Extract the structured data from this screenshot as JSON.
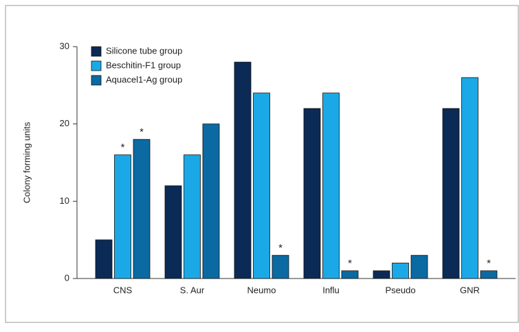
{
  "chart_data": {
    "type": "bar",
    "y_label": "Colony forming units",
    "categories": [
      "CNS",
      "S. Aur",
      "Neumo",
      "Influ",
      "Pseudo",
      "GNR"
    ],
    "series": [
      {
        "name": "Silicone tube group",
        "color": "#0b2a55",
        "values": [
          5,
          12,
          28,
          22,
          1,
          22
        ]
      },
      {
        "name": "Beschitin-F1 group",
        "color": "#1aa9e6",
        "values": [
          16,
          16,
          24,
          24,
          2,
          26
        ]
      },
      {
        "name": "Aquacel1-Ag group",
        "color": "#0b6aa2",
        "values": [
          18,
          20,
          3,
          1,
          3,
          1
        ]
      }
    ],
    "ylim": [
      0,
      30
    ],
    "yticks": [
      0,
      10,
      20,
      30
    ],
    "annotations": [
      {
        "text": "*",
        "series": 1,
        "category": 0
      },
      {
        "text": "*",
        "series": 2,
        "category": 0
      },
      {
        "text": "*",
        "series": 2,
        "category": 2
      },
      {
        "text": "*",
        "series": 2,
        "category": 3
      },
      {
        "text": "*",
        "series": 2,
        "category": 5
      }
    ]
  }
}
